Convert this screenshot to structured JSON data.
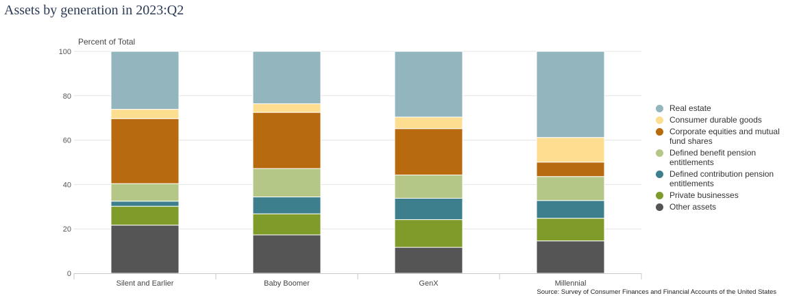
{
  "title": "Assets by generation in 2023:Q2",
  "source": "Source: Survey of Consumer Finances and Financial Accounts of the United States",
  "chart_data": {
    "type": "bar",
    "stacked": true,
    "title": "Assets by generation in 2023:Q2",
    "ylabel": "Percent of Total",
    "xlabel": "",
    "ylim": [
      0,
      100
    ],
    "yticks": [
      0,
      20,
      40,
      60,
      80,
      100
    ],
    "grid": true,
    "legend_position": "right",
    "categories": [
      "Silent and Earlier",
      "Baby Boomer",
      "GenX",
      "Millennial"
    ],
    "series": [
      {
        "name": "Other assets",
        "color": "#555556",
        "values": [
          21.7,
          17.3,
          11.7,
          14.6
        ]
      },
      {
        "name": "Private businesses",
        "color": "#7f9b2a",
        "values": [
          8.5,
          9.5,
          12.5,
          10.2
        ]
      },
      {
        "name": "Defined contribution pension entitlements",
        "color": "#3d7f8d",
        "values": [
          2.3,
          7.6,
          9.6,
          8.0
        ]
      },
      {
        "name": "Defined benefit pension entitlements",
        "color": "#b5c786",
        "values": [
          7.9,
          12.8,
          10.5,
          10.8
        ]
      },
      {
        "name": "Corporate equities and mutual fund shares",
        "color": "#b86a0e",
        "values": [
          29.3,
          25.3,
          20.9,
          6.5
        ]
      },
      {
        "name": "Consumer durable goods",
        "color": "#fdde90",
        "values": [
          4.2,
          3.9,
          5.2,
          11.1
        ]
      },
      {
        "name": "Real estate",
        "color": "#93b6be",
        "values": [
          26.1,
          23.6,
          29.6,
          38.8
        ]
      }
    ],
    "legend_order": [
      "Real estate",
      "Consumer durable goods",
      "Corporate equities and mutual fund shares",
      "Defined benefit pension entitlements",
      "Defined contribution pension entitlements",
      "Private businesses",
      "Other assets"
    ]
  }
}
